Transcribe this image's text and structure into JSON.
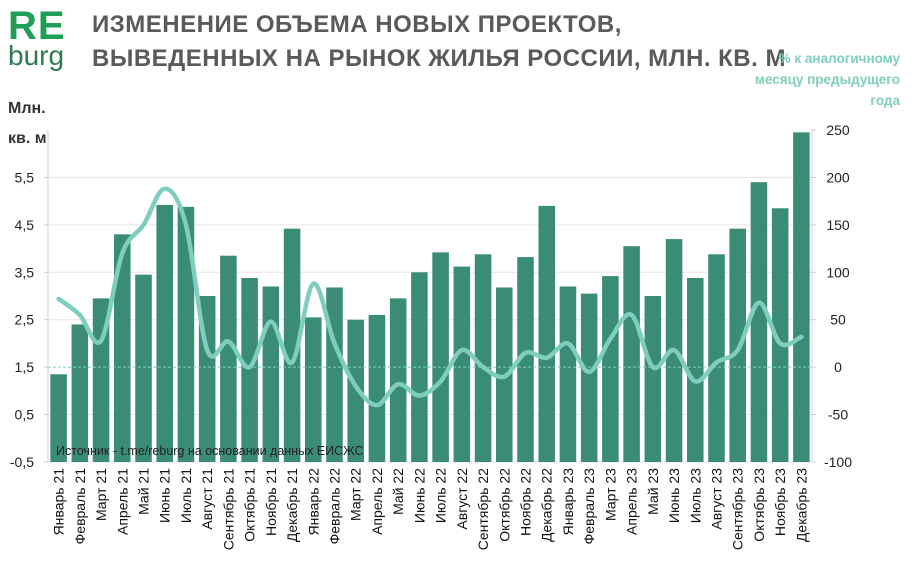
{
  "logo": {
    "re": "RE",
    "burg": "burg"
  },
  "chart_data": {
    "type": "bar+line",
    "title": "ИЗМЕНЕНИЕ ОБЪЕМА НОВЫХ ПРОЕКТОВ, ВЫВЕДЕННЫХ НА РЫНОК ЖИЛЬЯ РОССИИ, МЛН. КВ. М",
    "ylabel_left": "Млн. кв. м",
    "ylabel_right": "% к аналогичному месяцу предыдущего года",
    "source": "Источник - t.me/reburg на основании данных ЕИСЖС",
    "ylim_left": [
      -0.5,
      6.5
    ],
    "yticks_left": [
      "-0,5",
      "0,5",
      "1,5",
      "2,5",
      "3,5",
      "4,5",
      "5,5"
    ],
    "yticks_left_values": [
      -0.5,
      0.5,
      1.5,
      2.5,
      3.5,
      4.5,
      5.5
    ],
    "ylim_right": [
      -100,
      250
    ],
    "yticks_right": [
      "-100",
      "-50",
      "0",
      "50",
      "100",
      "150",
      "200",
      "250"
    ],
    "yticks_right_values": [
      -100,
      -50,
      0,
      50,
      100,
      150,
      200,
      250
    ],
    "colors": {
      "bar": "#3b8c76",
      "line": "#7ecdbd",
      "grid": "#e6e6e6",
      "baseline": "#7ecdbd"
    },
    "categories": [
      "Январь 21",
      "Февраль 21",
      "Март 21",
      "Апрель 21",
      "Май 21",
      "Июнь 21",
      "Июль 21",
      "Август 21",
      "Сентябрь 21",
      "Октябрь 21",
      "Ноябрь 21",
      "Декабрь 21",
      "Январь 22",
      "Февраль 22",
      "Март 22",
      "Апрель 22",
      "Май 22",
      "Июнь 22",
      "Июль 22",
      "Август 22",
      "Сентябрь 22",
      "Октябрь 22",
      "Ноябрь 22",
      "Декабрь 22",
      "Январь 23",
      "Февраль 23",
      "Март 23",
      "Апрель 23",
      "Май 23",
      "Июнь 23",
      "Июль 23",
      "Август 23",
      "Сентябрь 23",
      "Октябрь 23",
      "Ноябрь 23",
      "Декабрь 23"
    ],
    "series": [
      {
        "type": "bar",
        "axis": "left",
        "values": [
          1.35,
          2.4,
          2.95,
          4.3,
          3.45,
          4.92,
          4.88,
          3.0,
          3.85,
          3.38,
          3.2,
          4.42,
          2.55,
          3.18,
          2.5,
          2.6,
          2.95,
          3.5,
          3.92,
          3.62,
          3.88,
          3.18,
          3.82,
          4.9,
          3.2,
          3.05,
          3.42,
          4.05,
          3.0,
          4.2,
          3.38,
          3.88,
          4.42,
          5.4,
          4.85,
          6.45
        ]
      },
      {
        "type": "line",
        "axis": "right",
        "values": [
          72,
          55,
          28,
          120,
          150,
          188,
          150,
          18,
          27,
          0,
          48,
          5,
          88,
          25,
          -20,
          -40,
          -18,
          -30,
          -15,
          18,
          0,
          -10,
          15,
          10,
          25,
          -5,
          30,
          55,
          0,
          18,
          -15,
          5,
          18,
          68,
          25,
          32
        ]
      }
    ]
  }
}
